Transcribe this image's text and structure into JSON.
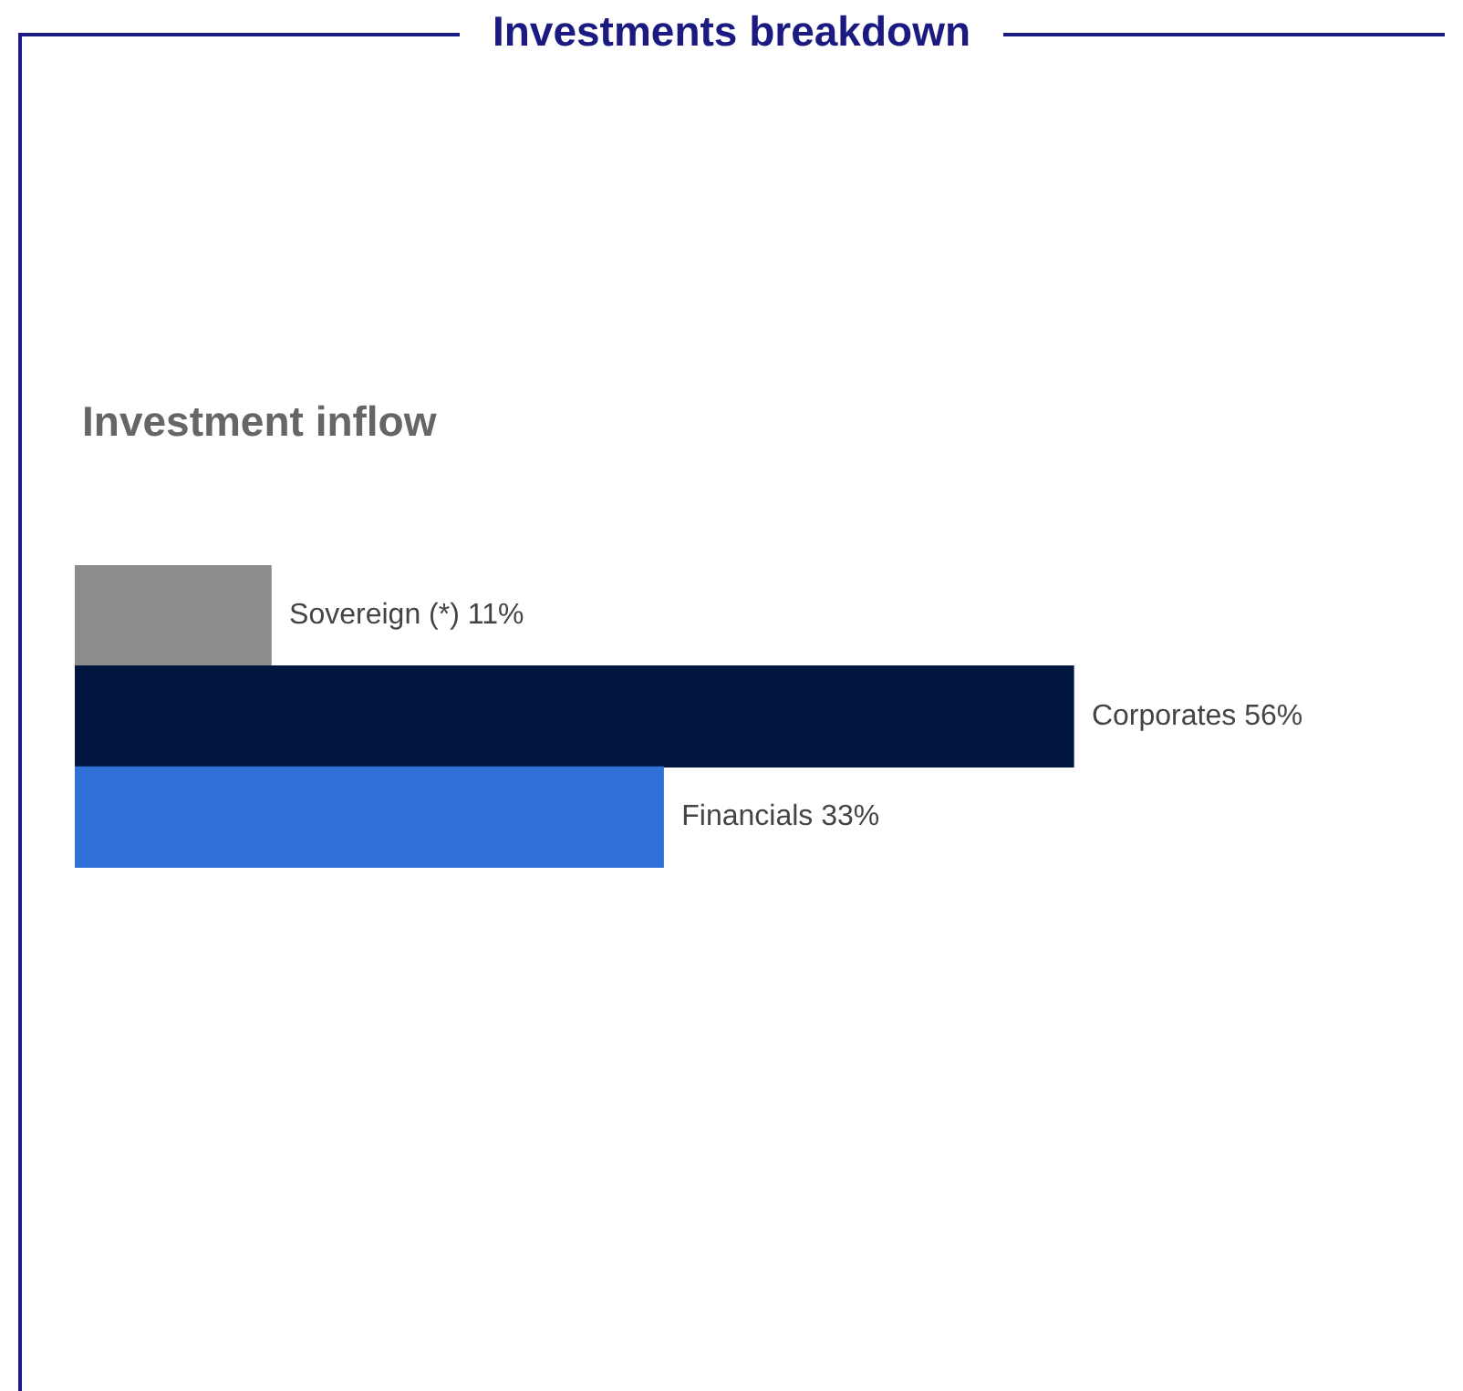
{
  "chart_data": {
    "type": "bar",
    "orientation": "horizontal",
    "title": "Investments breakdown",
    "subtitle": "Investment inflow",
    "categories": [
      null,
      null,
      null
    ],
    "values": [
      11,
      56,
      33
    ],
    "colors": [
      "#8c8c8c",
      "#001641",
      "#3170d6"
    ],
    "value_labels": [
      "Sovereign (*) 11%",
      "Corporates 56%",
      "Financials 33%"
    ],
    "tick_labels": false
  }
}
